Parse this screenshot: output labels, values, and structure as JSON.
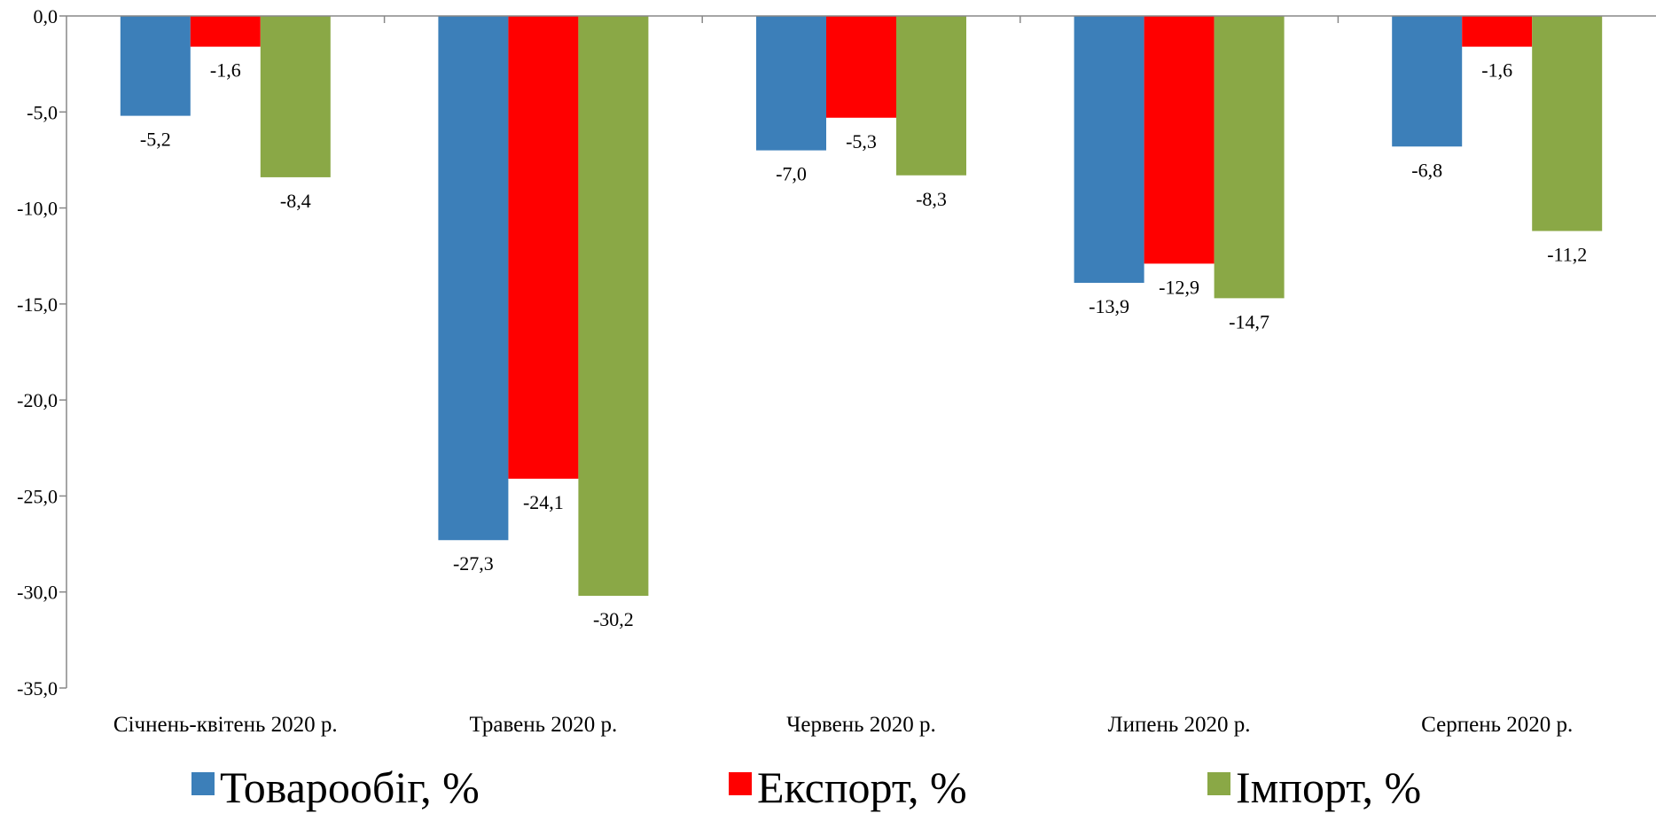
{
  "chart_data": {
    "type": "bar",
    "categories": [
      "Січнень-квітень 2020 р.",
      "Травень 2020 р.",
      "Червень 2020 р.",
      "Липень 2020 р.",
      "Серпень 2020 р."
    ],
    "series": [
      {
        "name": "Товарообіг, %",
        "color": "#3c7fb9",
        "values": [
          -5.2,
          -27.3,
          -7.0,
          -13.9,
          -6.8
        ],
        "labels": [
          "-5,2",
          "-27,3",
          "-7,0",
          "-13,9",
          "-6,8"
        ]
      },
      {
        "name": "Експорт, %",
        "color": "#ff0000",
        "values": [
          -1.6,
          -24.1,
          -5.3,
          -12.9,
          -1.6
        ],
        "labels": [
          "-1,6",
          "-24,1",
          "-5,3",
          "-12,9",
          "-1,6"
        ]
      },
      {
        "name": "Імпорт, %",
        "color": "#8aa846",
        "values": [
          -8.4,
          -30.2,
          -8.3,
          -14.7,
          -11.2
        ],
        "labels": [
          "-8,4",
          "-30,2",
          "-8,3",
          "-14,7",
          "-11,2"
        ]
      }
    ],
    "ylim": [
      -35,
      0
    ],
    "yticks": [
      0,
      -5,
      -10,
      -15,
      -20,
      -25,
      -30,
      -35
    ],
    "ytick_labels": [
      "0,0",
      "-5,0",
      "-10,0",
      "-15,0",
      "-20,0",
      "-25,0",
      "-30,0",
      "-35,0"
    ],
    "grid": false,
    "legend_position": "bottom",
    "title": "",
    "xlabel": "",
    "ylabel": ""
  }
}
